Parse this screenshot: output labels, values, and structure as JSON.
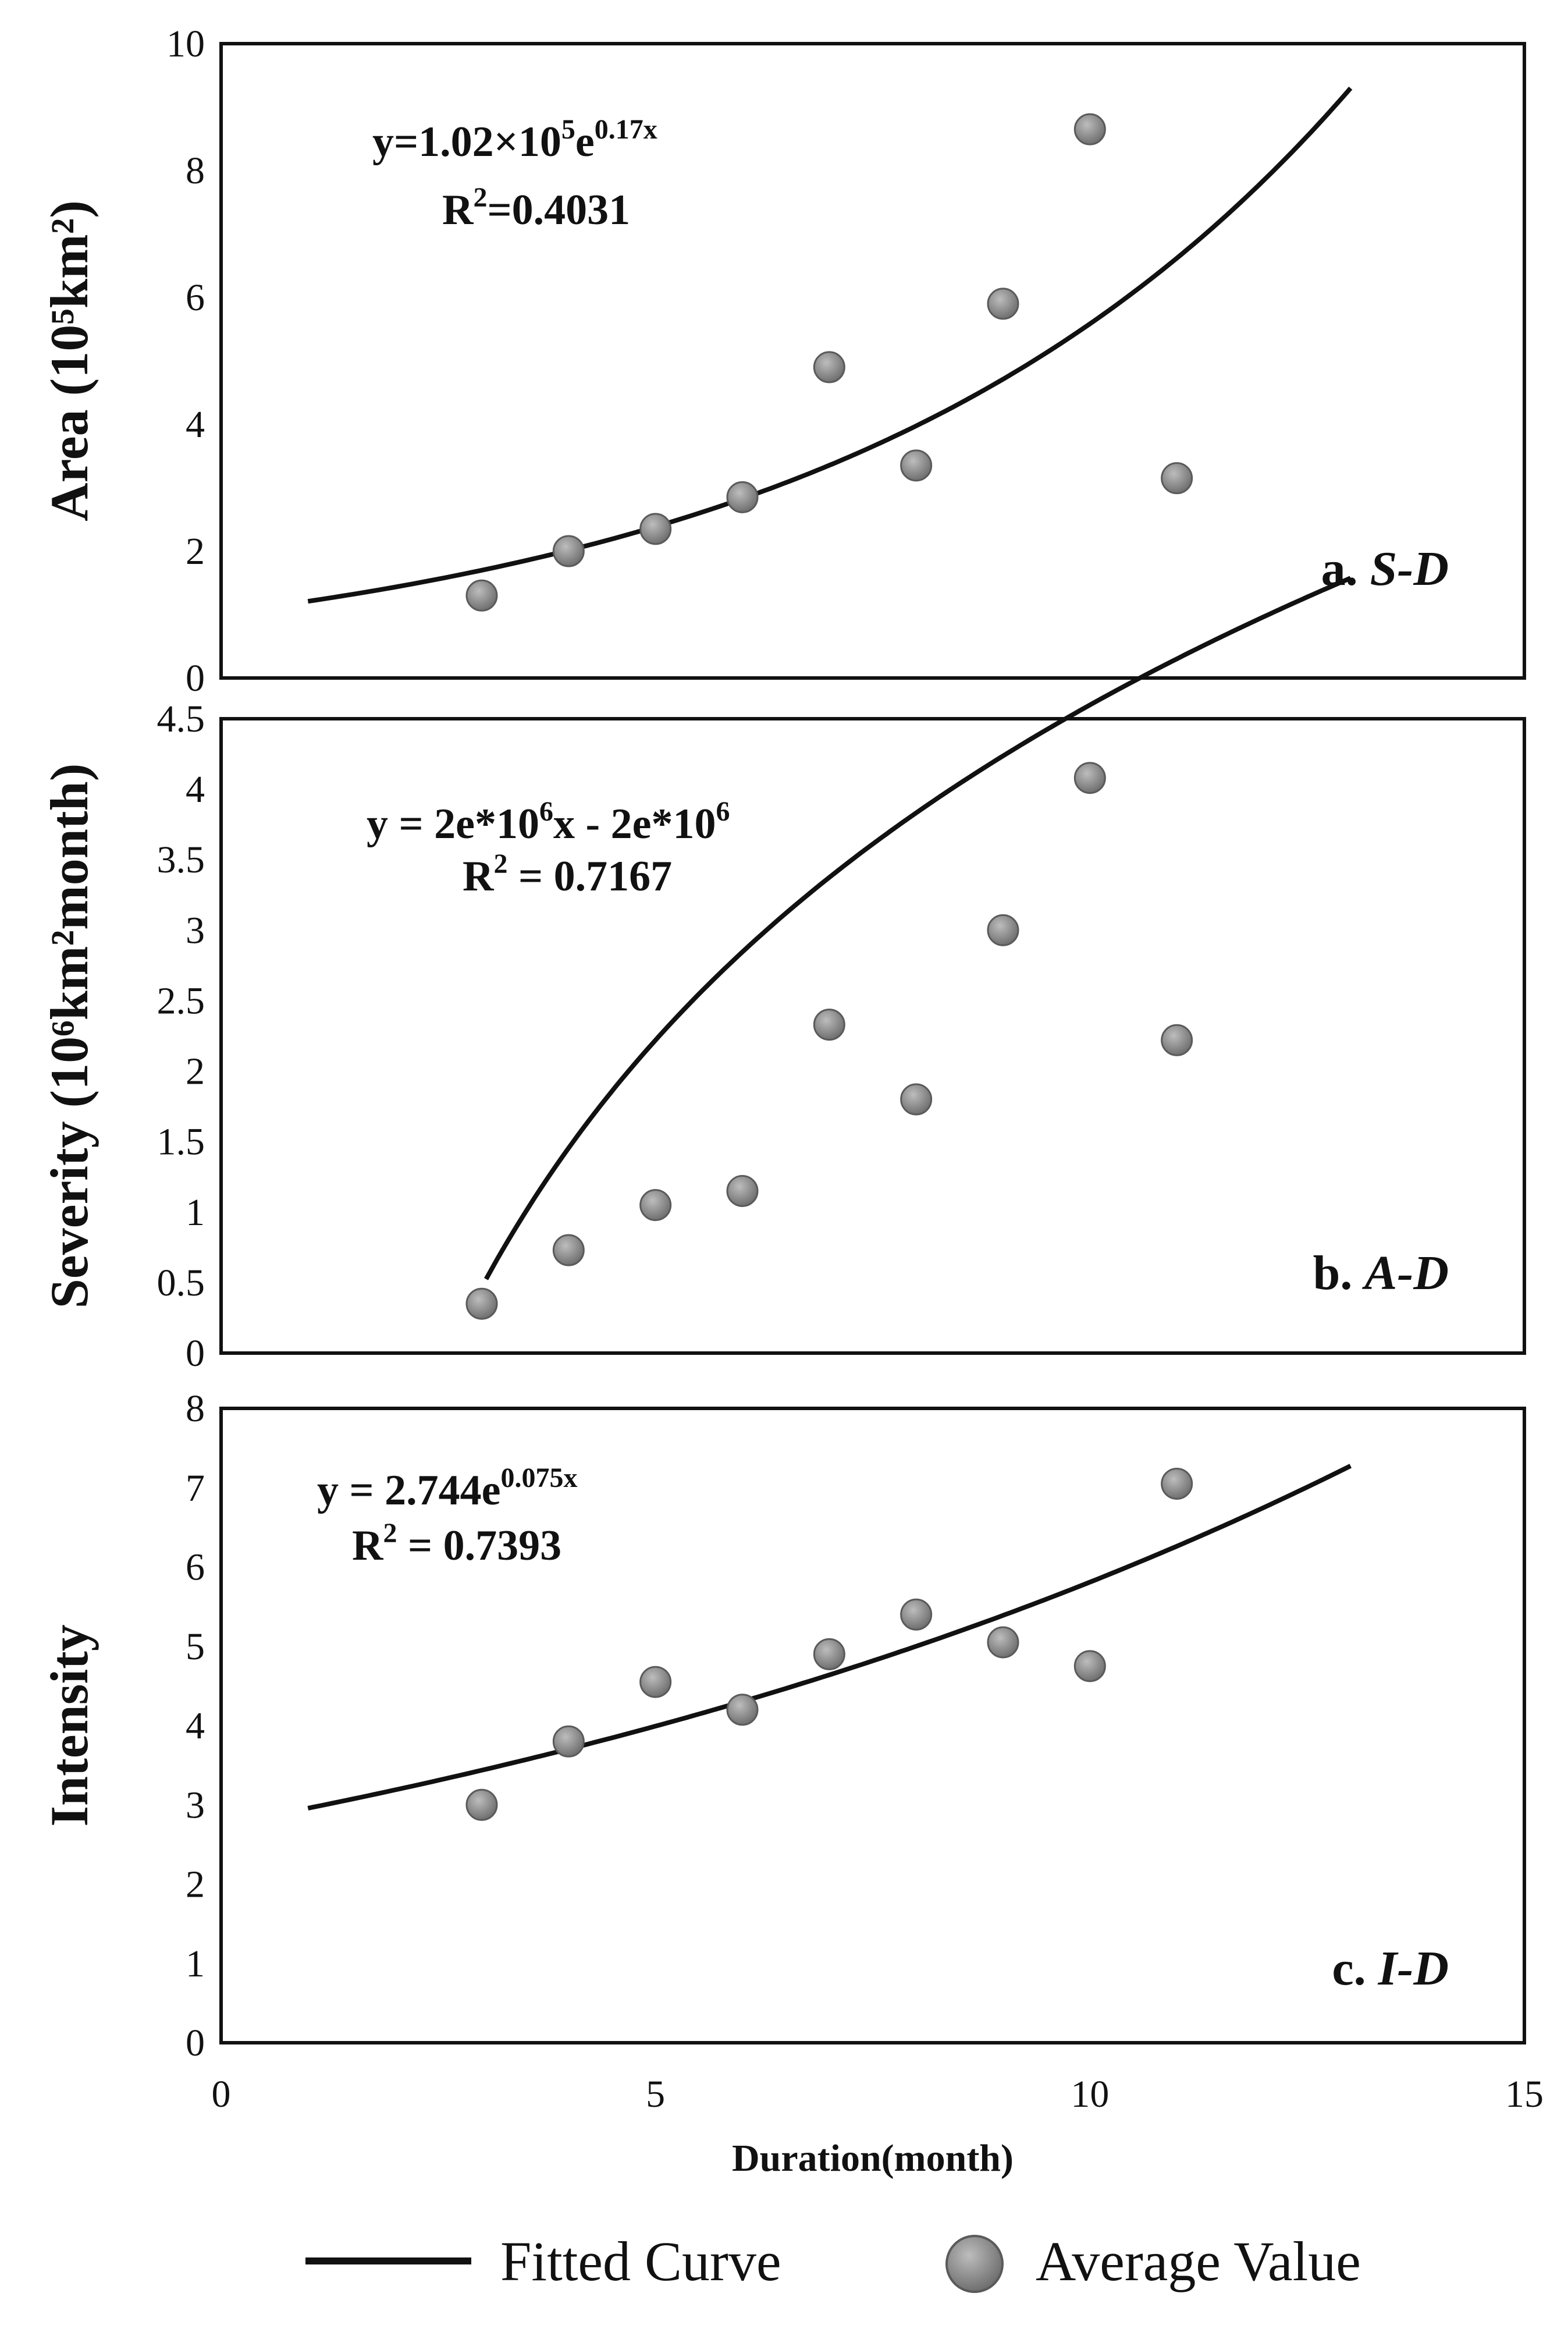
{
  "legend": {
    "line_label": "Fitted Curve",
    "marker_label": "Average Value"
  },
  "colors": {
    "line": "#111111",
    "point_fill": "#8a8a8a",
    "point_stroke": "#5a5a5a",
    "frame": "#111111"
  },
  "chart_data": [
    {
      "type": "scatter",
      "id": "a",
      "ylabel": "Area (10⁵km²)",
      "ylim": [
        0,
        10
      ],
      "yticks": [
        0,
        2,
        4,
        6,
        8,
        10
      ],
      "ytick_labels": [
        "0",
        "2",
        "4",
        "6",
        "8",
        "10"
      ],
      "panel_label": {
        "prefix": "a. ",
        "name": "S-D"
      },
      "equation": {
        "pre": "y=1.02×10",
        "exp1": "5",
        "mid": "e",
        "exp2": "0.17x",
        "post": ""
      },
      "r2": {
        "pre": "R",
        "exp": "2",
        "post": "=0.4031"
      },
      "x": [
        3,
        4,
        5,
        6,
        7,
        8,
        9,
        10,
        11
      ],
      "y": [
        1.3,
        2.0,
        2.35,
        2.85,
        4.9,
        3.35,
        5.9,
        8.65,
        3.15
      ],
      "fit": {
        "form": "exp",
        "a": 1.02,
        "b": 0.17,
        "x_range": [
          1,
          13
        ]
      }
    },
    {
      "type": "scatter",
      "id": "b",
      "ylabel": "Severity (10⁶km²month)",
      "ylim": [
        0,
        4.5
      ],
      "yticks": [
        0,
        0.5,
        1,
        1.5,
        2,
        2.5,
        3,
        3.5,
        4,
        4.5
      ],
      "ytick_labels": [
        "0",
        "0.5",
        "1",
        "1.5",
        "2",
        "2.5",
        "3",
        "3.5",
        "4",
        "4.5"
      ],
      "panel_label": {
        "prefix": "b.  ",
        "name": "A-D"
      },
      "equation": {
        "pre": "y = 2e*10",
        "exp1": "6",
        "mid": "x - 2e*10",
        "exp2": "6",
        "post": ""
      },
      "r2": {
        "pre": "R",
        "exp": "2",
        "post": " = 0.7167"
      },
      "x": [
        3,
        4,
        5,
        6,
        7,
        8,
        9,
        10,
        11
      ],
      "y": [
        0.35,
        0.73,
        1.05,
        1.15,
        2.33,
        1.8,
        3.0,
        4.08,
        2.22
      ],
      "fit": {
        "form": "log",
        "a": 3.43,
        "b": 3.3,
        "x_range": [
          3.05,
          13
        ]
      }
    },
    {
      "type": "scatter",
      "id": "c",
      "ylabel": "Intensity",
      "ylim": [
        0,
        8
      ],
      "yticks": [
        0,
        1,
        2,
        3,
        4,
        5,
        6,
        7,
        8
      ],
      "ytick_labels": [
        "0",
        "1",
        "2",
        "3",
        "4",
        "5",
        "6",
        "7",
        "8"
      ],
      "panel_label": {
        "prefix": "c. ",
        "name": "I-D"
      },
      "equation": {
        "pre": "y = 2.744e",
        "exp1": "0.075x",
        "mid": "",
        "exp2": "",
        "post": ""
      },
      "r2": {
        "pre": "R",
        "exp": "2",
        "post": " = 0.7393"
      },
      "x": [
        3,
        4,
        5,
        6,
        7,
        8,
        9,
        10,
        11
      ],
      "y": [
        3.0,
        3.8,
        4.55,
        4.2,
        4.9,
        5.4,
        5.05,
        4.75,
        7.05
      ],
      "fit": {
        "form": "exp",
        "a": 2.744,
        "b": 0.075,
        "x_range": [
          1,
          13
        ]
      },
      "xlim": [
        0,
        15
      ],
      "xticks": [
        0,
        5,
        10,
        15
      ],
      "xtick_labels": [
        "0",
        "5",
        "10",
        "15"
      ],
      "xlabel": "Duration(month)"
    }
  ]
}
